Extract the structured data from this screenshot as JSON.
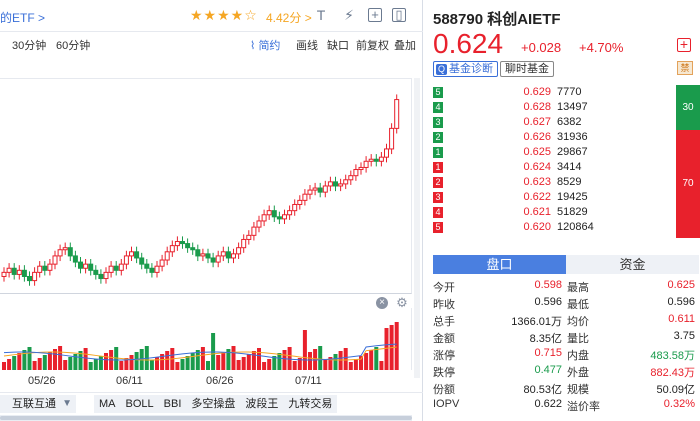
{
  "header": {
    "fund_link": "的ETF >",
    "stars": "★★★★☆",
    "rating": "4.42分",
    "rating_arrow": ">"
  },
  "colors": {
    "up": "#e8212c",
    "down": "#1a9b4c",
    "accent": "#3a6fd8",
    "star": "#f5a623"
  },
  "toolbar": {
    "timeframes": [
      "30分钟",
      "60分钟"
    ],
    "right_items": [
      "简约",
      "画线",
      "缺口",
      "前复权",
      "叠加"
    ]
  },
  "chart_data": {
    "type": "candlestick",
    "xticks": [
      "05/26",
      "06/11",
      "06/26",
      "07/11"
    ],
    "volume_series": true
  },
  "indicators": {
    "dropdown": "互联互通",
    "tabs": [
      "MA",
      "BOLL",
      "BBI",
      "多空操盘",
      "波段王",
      "九转交易"
    ]
  },
  "quote": {
    "code_name": "588790 科创AIETF",
    "price": "0.624",
    "change": "+0.028",
    "change_pct": "+4.70%",
    "btn_diagnose": "基金诊断",
    "btn_diagnose_icon": "Q",
    "btn_realtime": "聊时基金",
    "ban_icon": "禁",
    "plus_icon": "+"
  },
  "order_book": {
    "asks": [
      {
        "idx": "5",
        "price": "0.629",
        "vol": "7770"
      },
      {
        "idx": "4",
        "price": "0.628",
        "vol": "13497"
      },
      {
        "idx": "3",
        "price": "0.627",
        "vol": "6382"
      },
      {
        "idx": "2",
        "price": "0.626",
        "vol": "31936"
      },
      {
        "idx": "1",
        "price": "0.625",
        "vol": "29867"
      }
    ],
    "bids": [
      {
        "idx": "1",
        "price": "0.624",
        "vol": "3414"
      },
      {
        "idx": "2",
        "price": "0.623",
        "vol": "8529"
      },
      {
        "idx": "3",
        "price": "0.622",
        "vol": "19425"
      },
      {
        "idx": "4",
        "price": "0.621",
        "vol": "51829"
      },
      {
        "idx": "5",
        "price": "0.620",
        "vol": "120864"
      }
    ],
    "sell_ratio": "30",
    "buy_ratio": "70"
  },
  "panel_tabs": [
    "盘口",
    "资金"
  ],
  "stats": [
    {
      "l1": "今开",
      "v1": "0.598",
      "c1": "red",
      "l2": "最高",
      "v2": "0.625",
      "c2": "red"
    },
    {
      "l1": "昨收",
      "v1": "0.596",
      "c1": "dark",
      "l2": "最低",
      "v2": "0.596",
      "c2": "dark"
    },
    {
      "l1": "总手",
      "v1": "1366.01万",
      "c1": "dark",
      "l2": "均价",
      "v2": "0.611",
      "c2": "red"
    },
    {
      "l1": "金额",
      "v1": "8.35亿",
      "c1": "dark",
      "l2": "量比",
      "v2": "3.75",
      "c2": "dark"
    },
    {
      "l1": "涨停",
      "v1": "0.715",
      "c1": "red",
      "l2": "内盘",
      "v2": "483.58万",
      "c2": "green"
    },
    {
      "l1": "跌停",
      "v1": "0.477",
      "c1": "green",
      "l2": "外盘",
      "v2": "882.43万",
      "c2": "red"
    },
    {
      "l1": "份额",
      "v1": "80.53亿",
      "c1": "dark",
      "l2": "规模",
      "v2": "50.09亿",
      "c2": "dark"
    },
    {
      "l1": "IOPV",
      "v1": "0.622",
      "c1": "dark",
      "l2": "溢价率",
      "v2": "0.32%",
      "c2": "red"
    }
  ]
}
